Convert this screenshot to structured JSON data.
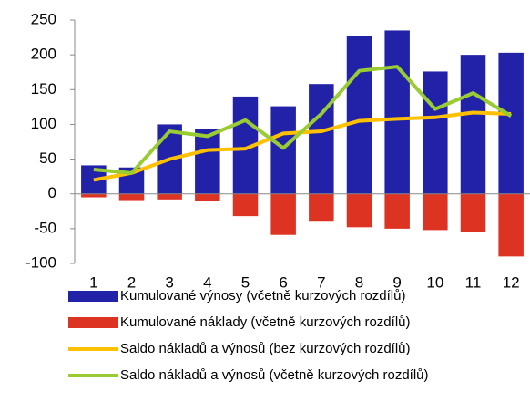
{
  "chart_data": {
    "type": "bar-line",
    "categories": [
      "1",
      "2",
      "3",
      "4",
      "5",
      "6",
      "7",
      "8",
      "9",
      "10",
      "11",
      "12"
    ],
    "series": [
      {
        "name": "Kumulované výnosy (včetně kurzových rozdílů)",
        "color": "#2222a8",
        "kind": "bar",
        "values": [
          41,
          38,
          100,
          93,
          140,
          126,
          158,
          227,
          235,
          176,
          200,
          203
        ]
      },
      {
        "name": "Kumulované náklady (včetně kurzových rozdílů)",
        "color": "#dd3322",
        "kind": "bar",
        "values": [
          -5,
          -9,
          -8,
          -10,
          -32,
          -59,
          -40,
          -48,
          -50,
          -52,
          -55,
          -90
        ]
      },
      {
        "name": "Saldo nákladů a výnosů (bez kurzových rozdílů)",
        "color": "#ffc000",
        "kind": "line",
        "values": [
          20,
          30,
          50,
          63,
          65,
          87,
          90,
          105,
          108,
          110,
          117,
          115
        ]
      },
      {
        "name": "Saldo nákladů a výnosů (včetně kurzových rozdílů)",
        "color": "#99cc33",
        "kind": "line",
        "values": [
          35,
          30,
          90,
          83,
          106,
          66,
          115,
          177,
          183,
          122,
          145,
          112
        ]
      }
    ],
    "ylim": [
      -100,
      250
    ],
    "yticks": [
      -100,
      -50,
      0,
      50,
      100,
      150,
      200,
      250
    ],
    "legend": "bottom"
  }
}
